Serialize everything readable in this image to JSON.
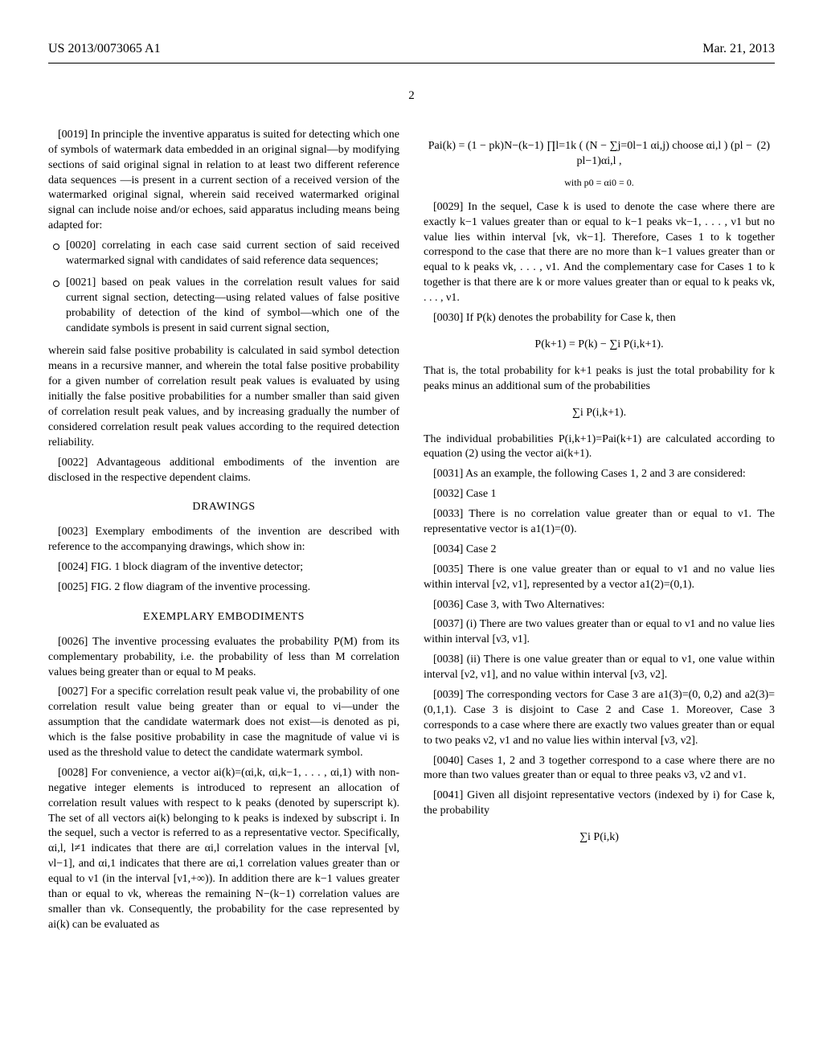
{
  "header": {
    "pub_number": "US 2013/0073065 A1",
    "pub_date": "Mar. 21, 2013",
    "page": "2"
  },
  "left_col": {
    "p19": "[0019] In principle the inventive apparatus is suited for detecting which one of symbols of watermark data embedded in an original signal—by modifying sections of said original signal in relation to at least two different reference data sequences —is present in a current section of a received version of the watermarked original signal, wherein said received watermarked original signal can include noise and/or echoes, said apparatus including means being adapted for:",
    "bullets": {
      "b20": "[0020] correlating in each case said current section of said received watermarked signal with candidates of said reference data sequences;",
      "b21": "[0021] based on peak values in the correlation result values for said current signal section, detecting—using related values of false positive probability of detection of the kind of symbol—which one of the candidate symbols is present in said current signal section,"
    },
    "after_bullets": "wherein said false positive probability is calculated in said symbol detection means in a recursive manner, and wherein the total false positive probability for a given number of correlation result peak values is evaluated by using initially the false positive probabilities for a number smaller than said given of correlation result peak values, and by increasing gradually the number of considered correlation result peak values according to the required detection reliability.",
    "p22": "[0022] Advantageous additional embodiments of the invention are disclosed in the respective dependent claims.",
    "drawings_title": "DRAWINGS",
    "p23": "[0023] Exemplary embodiments of the invention are described with reference to the accompanying drawings, which show in:",
    "p24": "[0024] FIG. 1 block diagram of the inventive detector;",
    "p25": "[0025] FIG. 2 flow diagram of the inventive processing.",
    "exemplary_title": "EXEMPLARY EMBODIMENTS",
    "p26": "[0026] The inventive processing evaluates the probability P(M) from its complementary probability, i.e. the probability of less than M correlation values being greater than or equal to M peaks.",
    "p27": "[0027] For a specific correlation result peak value νi, the probability of one correlation result value being greater than or equal to νi—under the assumption that the candidate watermark does not exist—is denoted as pi, which is the false positive probability in case the magnitude of value νi is used as the threshold value to detect the candidate watermark symbol.",
    "p28": "[0028] For convenience, a vector ai(k)=(αi,k, αi,k−1, . . . , αi,1) with non-negative integer elements is introduced to represent an allocation of correlation result values with respect to k peaks (denoted by superscript k). The set of all vectors ai(k) belonging to k peaks is indexed by subscript i. In the sequel, such a vector is referred to as a representative vector. Specifically, αi,l, l≠1 indicates that there are αi,l correlation values in the interval [νl, νl−1], and αi,1 indicates that there are αi,1 correlation values greater than or equal to ν1 (in the interval [ν1,+∞)). In addition there are k−1 values greater than or equal to νk, whereas the remaining N−(k−1) correlation values are smaller than νk. Consequently, the probability for the case represented by ai(k) can be evaluated as"
  },
  "right_col": {
    "formula2_main": "Pai(k) = (1 − pk)N−(k−1) ∏l=1k ( (N − ∑j=0l−1 αi,j) choose αi,l ) (pl − pl−1)αi,l ,",
    "formula2_num": "(2)",
    "formula2_sub": "with p0 = αi0 = 0.",
    "p29": "[0029] In the sequel, Case k is used to denote the case where there are exactly k−1 values greater than or equal to k−1 peaks νk−1, . . . , ν1 but no value lies within interval [νk, νk−1]. Therefore, Cases 1 to k together correspond to the case that there are no more than k−1 values greater than or equal to k peaks νk, . . . , ν1. And the complementary case for Cases 1 to k together is that there are k or more values greater than or equal to k peaks νk, . . . , ν1.",
    "p30": "[0030] If P(k) denotes the probability for Case k, then",
    "formula_p": "P(k+1) = P(k) − ∑i P(i,k+1).",
    "after_formula_p": "That is, the total probability for k+1 peaks is just the total probability for k peaks minus an additional sum of the probabilities",
    "formula_sum": "∑i P(i,k+1).",
    "after_sum": "The individual probabilities P(i,k+1)=Pai(k+1) are calculated according to equation (2) using the vector ai(k+1).",
    "p31": "[0031] As an example, the following Cases 1, 2 and 3 are considered:",
    "p32": "[0032] Case 1",
    "p33": "[0033] There is no correlation value greater than or equal to ν1. The representative vector is a1(1)=(0).",
    "p34": "[0034] Case 2",
    "p35": "[0035] There is one value greater than or equal to ν1 and no value lies within interval [ν2, ν1], represented by a vector a1(2)=(0,1).",
    "p36": "[0036] Case 3, with Two Alternatives:",
    "p37": "[0037] (i) There are two values greater than or equal to ν1 and no value lies within interval [ν3, ν1].",
    "p38": "[0038] (ii) There is one value greater than or equal to ν1, one value within interval [ν2, ν1], and no value within interval [ν3, ν2].",
    "p39": "[0039] The corresponding vectors for Case 3 are a1(3)=(0, 0,2) and a2(3)=(0,1,1). Case 3 is disjoint to Case 2 and Case 1. Moreover, Case 3 corresponds to a case where there are exactly two values greater than or equal to two peaks ν2, ν1 and no value lies within interval [ν3, ν2].",
    "p40": "[0040] Cases 1, 2 and 3 together correspond to a case where there are no more than two values greater than or equal to three peaks ν3, ν2 and ν1.",
    "p41": "[0041] Given all disjoint representative vectors (indexed by i) for Case k, the probability",
    "formula_last": "∑i P(i,k)"
  }
}
